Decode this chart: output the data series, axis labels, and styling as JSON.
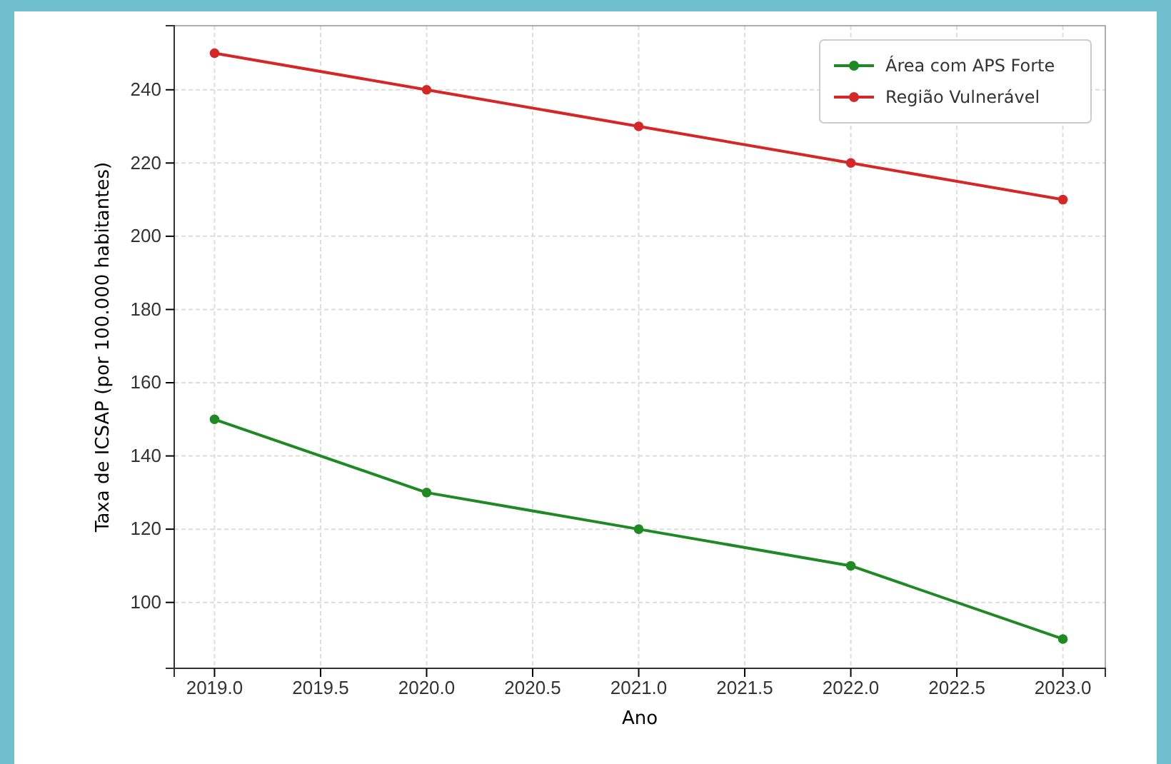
{
  "chart_data": {
    "type": "line",
    "xlabel": "Ano",
    "ylabel": "Taxa de ICSAP (por 100.000 habitantes)",
    "x": [
      2019,
      2020,
      2021,
      2022,
      2023
    ],
    "series": [
      {
        "name": "Área com APS Forte",
        "color": "#1f8a24",
        "values": [
          150,
          130,
          120,
          110,
          90
        ]
      },
      {
        "name": "Região Vulnerável",
        "color": "#d62728",
        "values": [
          250,
          240,
          230,
          220,
          210
        ]
      }
    ],
    "xlim": [
      2018.81,
      2023.2
    ],
    "xticks": [
      {
        "value": 2019,
        "label": "2019.0"
      },
      {
        "value": 2019.5,
        "label": "2019.5"
      },
      {
        "value": 2020,
        "label": "2020.0"
      },
      {
        "value": 2020.5,
        "label": "2020.5"
      },
      {
        "value": 2021,
        "label": "2021.0"
      },
      {
        "value": 2021.5,
        "label": "2021.5"
      },
      {
        "value": 2022,
        "label": "2022.0"
      },
      {
        "value": 2022.5,
        "label": "2022.5"
      },
      {
        "value": 2023,
        "label": "2023.0"
      }
    ],
    "ylim": [
      82,
      257.5
    ],
    "yticks": [
      100,
      120,
      140,
      160,
      180,
      200,
      220,
      240
    ],
    "grid": true,
    "legend": "top right",
    "marker": "circle",
    "line_style": "solid"
  }
}
